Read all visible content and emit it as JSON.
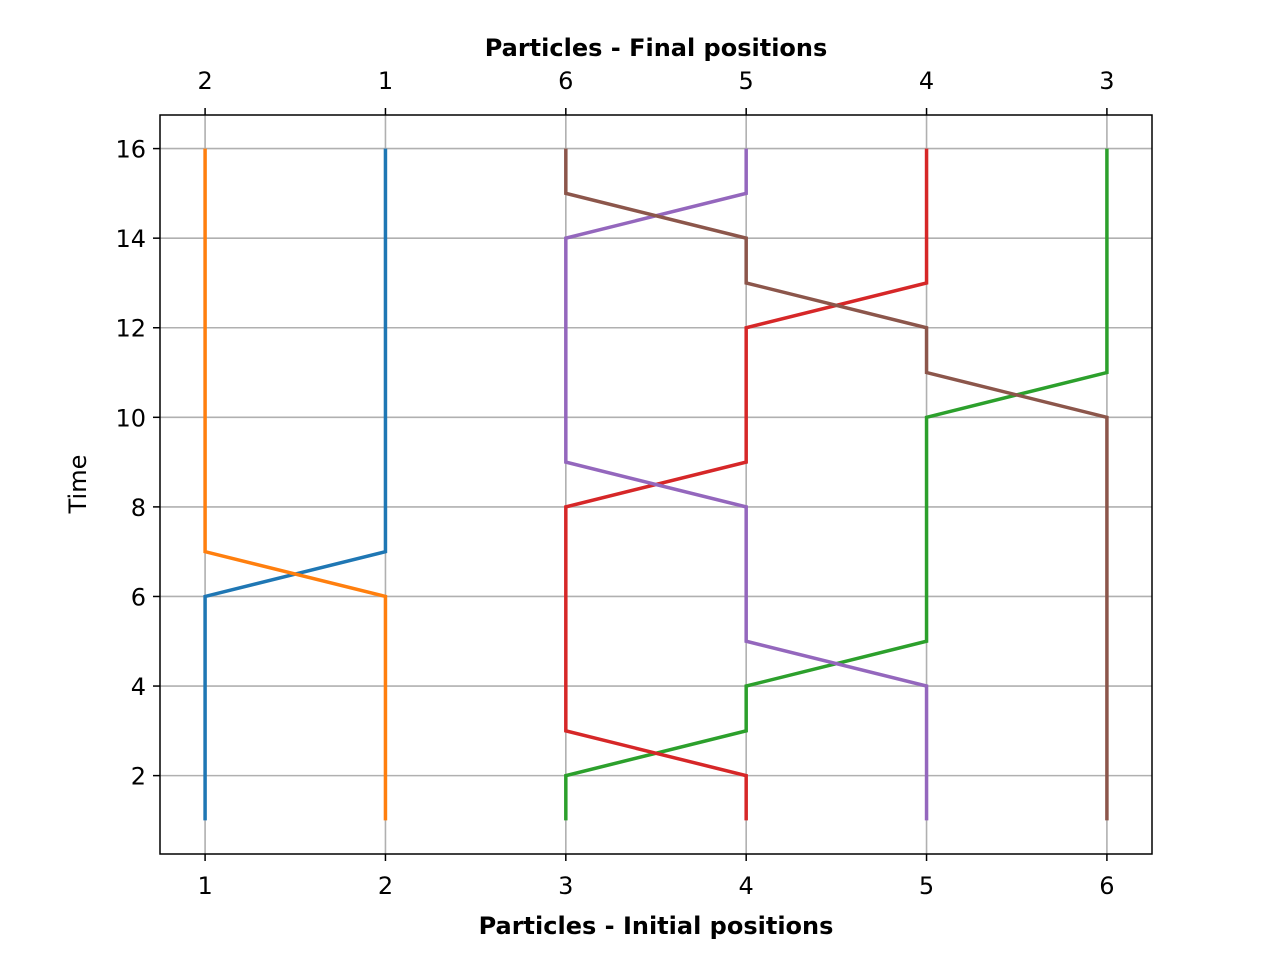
{
  "chart_data": {
    "type": "line",
    "title": "",
    "xlabel": "Particles - Initial positions",
    "x2label": "Particles - Final positions",
    "ylabel": "Time",
    "xlim": [
      0.75,
      6.25
    ],
    "ylim": [
      0.25,
      16.75
    ],
    "x_ticks": [
      "1",
      "2",
      "3",
      "4",
      "5",
      "6"
    ],
    "x2_ticks": [
      "2",
      "1",
      "6",
      "5",
      "4",
      "3"
    ],
    "y_ticks": [
      "2",
      "4",
      "6",
      "8",
      "10",
      "12",
      "14",
      "16"
    ],
    "grid": true,
    "series": [
      {
        "color": "#1f77b4",
        "x": [
          1,
          1,
          2,
          2
        ],
        "y": [
          1,
          6,
          7,
          16
        ]
      },
      {
        "color": "#ff7f0e",
        "x": [
          2,
          2,
          1,
          1
        ],
        "y": [
          1,
          6,
          7,
          16
        ]
      },
      {
        "color": "#2ca02c",
        "x": [
          3,
          3,
          4,
          4,
          5,
          5,
          6,
          6
        ],
        "y": [
          1,
          2,
          3,
          4,
          5,
          10,
          11,
          16
        ]
      },
      {
        "color": "#d62728",
        "x": [
          4,
          4,
          3,
          3,
          4,
          4,
          5,
          5
        ],
        "y": [
          1,
          2,
          3,
          8,
          9,
          12,
          13,
          16
        ]
      },
      {
        "color": "#9467bd",
        "x": [
          5,
          5,
          4,
          4,
          3,
          3,
          4,
          4
        ],
        "y": [
          1,
          4,
          5,
          8,
          9,
          14,
          15,
          16
        ]
      },
      {
        "color": "#8c564b",
        "x": [
          6,
          6,
          5,
          5,
          4,
          4,
          3,
          3
        ],
        "y": [
          1,
          10,
          11,
          12,
          13,
          14,
          15,
          16
        ]
      }
    ]
  }
}
